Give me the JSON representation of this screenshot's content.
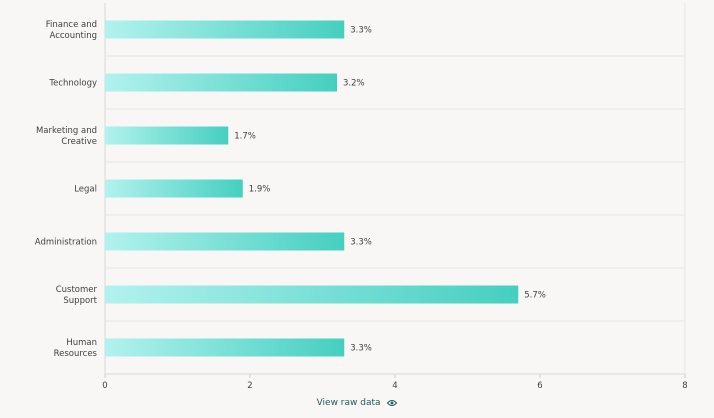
{
  "chart_data": {
    "type": "bar",
    "orientation": "horizontal",
    "categories": [
      [
        "Finance and",
        "Accounting"
      ],
      [
        "Technology"
      ],
      [
        "Marketing and",
        "Creative"
      ],
      [
        "Legal"
      ],
      [
        "Administration"
      ],
      [
        "Customer",
        "Support"
      ],
      [
        "Human",
        "Resources"
      ]
    ],
    "values": [
      3.3,
      3.2,
      1.7,
      1.9,
      3.3,
      5.7,
      3.3
    ],
    "value_labels": [
      "3.3%",
      "3.2%",
      "1.7%",
      "1.9%",
      "3.3%",
      "5.7%",
      "3.3%"
    ],
    "x_ticks": [
      0,
      2,
      4,
      6,
      8
    ],
    "xlim": [
      0,
      8
    ],
    "grid": true,
    "bar_gradient": [
      "#b2f2ee",
      "#45cfc0"
    ]
  },
  "footer": {
    "view_raw_label": "View raw data",
    "icon": "eye-icon"
  }
}
